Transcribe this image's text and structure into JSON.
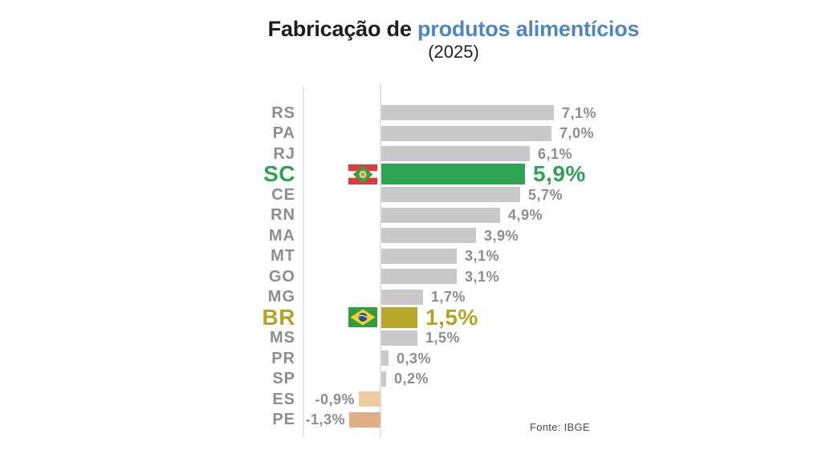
{
  "title": {
    "part_black": "Fabricação de",
    "part_blue": "produtos alimentícios",
    "subtitle": "(2025)"
  },
  "source": "Fonte: IBGE",
  "colors": {
    "background": "#ffffff",
    "title_blue": "#4d86c0",
    "bar_gray": "#c9c9c9",
    "sc_green": "#2fa351",
    "br_olive": "#b5a327",
    "negative_tan_light": "#efcba0",
    "negative_tan_dark": "#e0b189",
    "label_gray": "#8d8d8d",
    "axis_line_gray": "#e6e6e6"
  },
  "icons": {
    "sc_flag": "santa-catarina-flag",
    "br_flag": "brazil-flag"
  },
  "chart_data": {
    "type": "bar",
    "orientation": "horizontal",
    "title": "Fabricação de produtos alimentícios (2025)",
    "unit": "%",
    "value_format": "comma-decimal percent",
    "xlim": [
      -1.5,
      7.5
    ],
    "grid": false,
    "legend": false,
    "source": "Fonte: IBGE",
    "categories": [
      "RS",
      "PA",
      "RJ",
      "SC",
      "CE",
      "RN",
      "MA",
      "MT",
      "GO",
      "MG",
      "BR",
      "MS",
      "PR",
      "SP",
      "ES",
      "PE"
    ],
    "values": [
      7.1,
      7.0,
      6.1,
      5.9,
      5.7,
      4.9,
      3.9,
      3.1,
      3.1,
      1.7,
      1.5,
      1.5,
      0.3,
      0.2,
      -0.9,
      -1.3
    ],
    "rows": [
      {
        "label": "RS",
        "value": 7.1,
        "display": "7,1%",
        "color": "#c9c9c9"
      },
      {
        "label": "PA",
        "value": 7.0,
        "display": "7,0%",
        "color": "#c9c9c9"
      },
      {
        "label": "RJ",
        "value": 6.1,
        "display": "6,1%",
        "color": "#c9c9c9"
      },
      {
        "label": "SC",
        "value": 5.9,
        "display": "5,9%",
        "color": "#2fa351",
        "text_color": "#2fa351",
        "highlight": true,
        "flag": "santa-catarina"
      },
      {
        "label": "CE",
        "value": 5.7,
        "display": "5,7%",
        "color": "#c9c9c9"
      },
      {
        "label": "RN",
        "value": 4.9,
        "display": "4,9%",
        "color": "#c9c9c9"
      },
      {
        "label": "MA",
        "value": 3.9,
        "display": "3,9%",
        "color": "#c9c9c9"
      },
      {
        "label": "MT",
        "value": 3.1,
        "display": "3,1%",
        "color": "#c9c9c9"
      },
      {
        "label": "GO",
        "value": 3.1,
        "display": "3,1%",
        "color": "#c9c9c9"
      },
      {
        "label": "MG",
        "value": 1.7,
        "display": "1,7%",
        "color": "#c9c9c9"
      },
      {
        "label": "BR",
        "value": 1.5,
        "display": "1,5%",
        "color": "#b9a72c",
        "text_color": "#b5a327",
        "highlight": true,
        "flag": "brazil"
      },
      {
        "label": "MS",
        "value": 1.5,
        "display": "1,5%",
        "color": "#c9c9c9"
      },
      {
        "label": "PR",
        "value": 0.3,
        "display": "0,3%",
        "color": "#c9c9c9"
      },
      {
        "label": "SP",
        "value": 0.2,
        "display": "0,2%",
        "color": "#c9c9c9"
      },
      {
        "label": "ES",
        "value": -0.9,
        "display": "-0,9%",
        "color": "#efcba0"
      },
      {
        "label": "PE",
        "value": -1.3,
        "display": "-1,3%",
        "color": "#e0b189"
      }
    ]
  }
}
